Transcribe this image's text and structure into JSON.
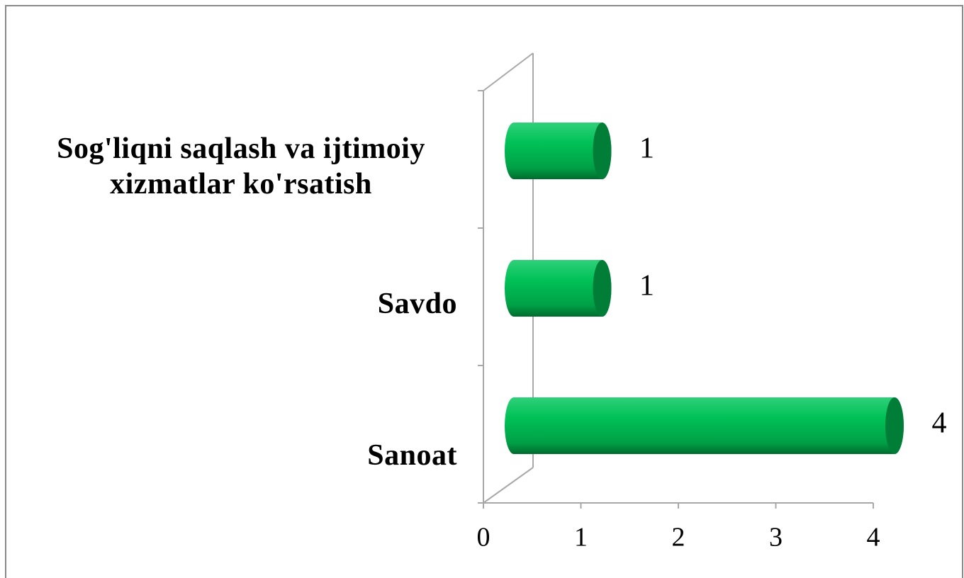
{
  "chart_data": {
    "type": "bar",
    "orientation": "horizontal",
    "categories": [
      "Sanoat",
      "Savdo",
      "Sog'liqni saqlash va ijtimoiy xizmatlar ko'rsatish"
    ],
    "values": [
      4,
      1,
      1
    ],
    "color": "#00c050",
    "xlim": [
      0,
      4
    ],
    "xticks": [
      0,
      1,
      2,
      3,
      4
    ]
  }
}
